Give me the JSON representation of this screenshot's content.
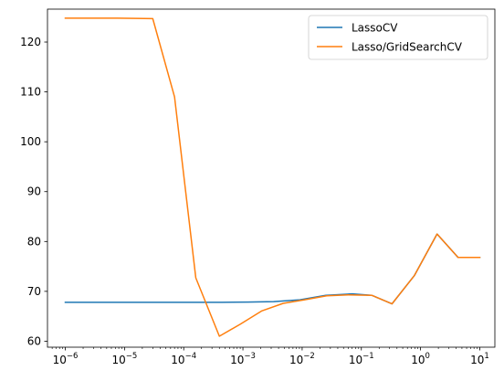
{
  "chart_data": {
    "type": "line",
    "title": "",
    "xlabel": "",
    "ylabel": "",
    "xscale": "log",
    "xlim": [
      5e-07,
      18.0
    ],
    "ylim": [
      58.8,
      126.6
    ],
    "grid": false,
    "legend_position": "top-right",
    "x_ticks": [
      {
        "exp": -6,
        "value": 1e-06
      },
      {
        "exp": -5,
        "value": 1e-05
      },
      {
        "exp": -4,
        "value": 0.0001
      },
      {
        "exp": -3,
        "value": 0.001
      },
      {
        "exp": -2,
        "value": 0.01
      },
      {
        "exp": -1,
        "value": 0.1
      },
      {
        "exp": 0,
        "value": 1
      },
      {
        "exp": 1,
        "value": 10
      }
    ],
    "y_ticks": [
      60,
      70,
      80,
      90,
      100,
      110,
      120
    ],
    "series": [
      {
        "name": "LassoCV",
        "color": "#1f77b4",
        "points": [
          [
            1e-06,
            67.8
          ],
          [
            2.76e-06,
            67.8
          ],
          [
            7.6e-06,
            67.8
          ],
          [
            2.1e-05,
            67.8
          ],
          [
            5.8e-05,
            67.8
          ],
          [
            0.00016,
            67.8
          ],
          [
            0.00044,
            67.8
          ],
          [
            0.0012,
            67.85
          ],
          [
            0.0033,
            67.95
          ],
          [
            0.0092,
            68.3
          ],
          [
            0.025,
            69.2
          ],
          [
            0.07,
            69.5
          ],
          [
            0.15,
            69.2
          ],
          [
            0.33,
            67.5
          ],
          [
            0.79,
            73.2
          ],
          [
            1.9,
            81.5
          ],
          [
            4.3,
            76.8
          ],
          [
            10,
            76.8
          ]
        ]
      },
      {
        "name": "Lasso/GridSearchCV",
        "color": "#ff7f0e",
        "points": [
          [
            1e-06,
            124.8
          ],
          [
            2.76e-06,
            124.8
          ],
          [
            7.6e-06,
            124.8
          ],
          [
            3e-05,
            124.7
          ],
          [
            7e-05,
            109.0
          ],
          [
            0.00016,
            72.7
          ],
          [
            0.0004,
            61.0
          ],
          [
            0.0009,
            63.4
          ],
          [
            0.0021,
            66.1
          ],
          [
            0.0048,
            67.6
          ],
          [
            0.011,
            68.3
          ],
          [
            0.026,
            69.1
          ],
          [
            0.06,
            69.3
          ],
          [
            0.15,
            69.2
          ],
          [
            0.33,
            67.5
          ],
          [
            0.79,
            73.2
          ],
          [
            1.9,
            81.5
          ],
          [
            4.3,
            76.8
          ],
          [
            10,
            76.8
          ]
        ]
      }
    ]
  }
}
